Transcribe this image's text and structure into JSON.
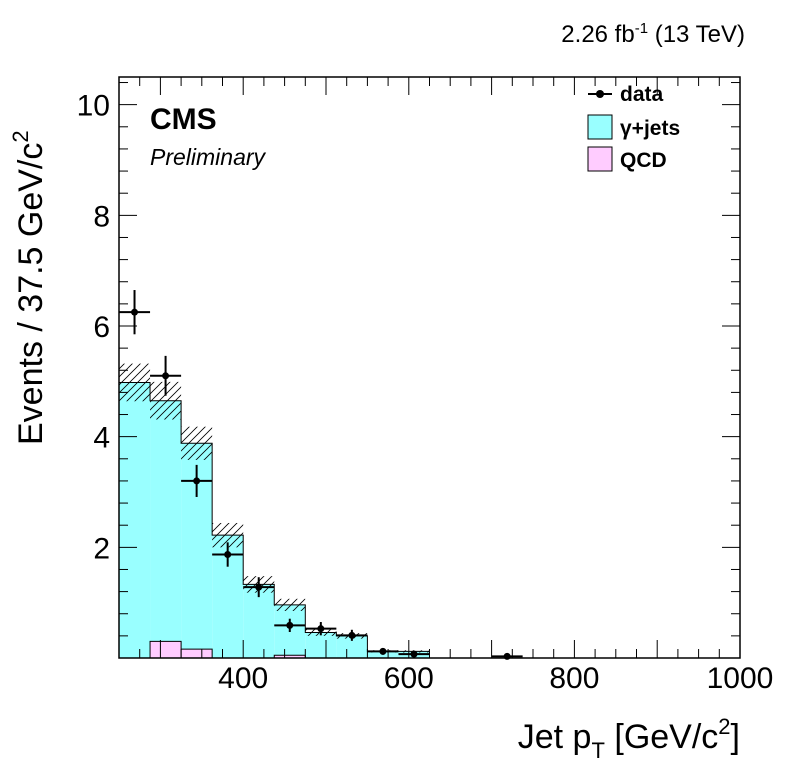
{
  "header": {
    "lumi": "2.26 fb",
    "lumi_exp": "-1",
    "energy": "(13 TeV)"
  },
  "labels": {
    "experiment": "CMS",
    "status": "Preliminary"
  },
  "colors": {
    "gamma_jets": "#99ffff",
    "qcd": "#ffccff",
    "data": "#000000",
    "uncertainty_hatch": "#000000"
  },
  "chart_data": {
    "type": "histogram",
    "xlabel_main": "Jet p",
    "xlabel_sub": "T",
    "xlabel_unit": " [GeV/c",
    "xlabel_unit_exp": "2",
    "xlabel_close": "]",
    "ylabel_main": "Events / 37.5 GeV/c",
    "ylabel_exp": "2",
    "xlim": [
      250,
      1000
    ],
    "ylim": [
      0,
      10.5
    ],
    "x_ticks": [
      400,
      600,
      800,
      1000
    ],
    "x_tick_labels": [
      "400",
      "600",
      "800",
      "1000"
    ],
    "y_ticks": [
      2,
      4,
      6,
      8,
      10
    ],
    "y_tick_labels": [
      "2",
      "4",
      "6",
      "8",
      "10"
    ],
    "bin_edges": [
      250,
      287.5,
      325,
      362.5,
      400,
      437.5,
      475,
      512.5,
      550,
      587.5,
      625,
      662.5,
      700,
      737.5,
      775,
      812.5,
      850,
      887.5,
      925,
      962.5,
      1000
    ],
    "stack": [
      {
        "name": "QCD",
        "values": [
          0.0,
          0.3,
          0.16,
          0.0,
          0.0,
          0.05,
          0.0,
          0.0,
          0.0,
          0.0,
          0.0,
          0.0,
          0.0,
          0.0,
          0.0,
          0.0,
          0.0,
          0.0,
          0.0,
          0.0
        ]
      },
      {
        "name": "γ+jets",
        "values": [
          4.98,
          4.35,
          3.72,
          2.22,
          1.33,
          0.91,
          0.46,
          0.4,
          0.12,
          0.12,
          0.0,
          0.0,
          0.0,
          0.0,
          0.0,
          0.0,
          0.0,
          0.0,
          0.0,
          0.0
        ]
      }
    ],
    "uncertainty": [
      0.34,
      0.34,
      0.3,
      0.22,
      0.15,
      0.11,
      0.06,
      0.05,
      0.02,
      0.02,
      0,
      0,
      0,
      0,
      0,
      0,
      0,
      0,
      0,
      0
    ],
    "data": {
      "name": "data",
      "x": [
        268.75,
        306.25,
        343.75,
        381.25,
        418.75,
        456.25,
        493.75,
        531.25,
        568.75,
        606.25,
        718.75
      ],
      "y": [
        6.25,
        5.1,
        3.2,
        1.87,
        1.28,
        0.59,
        0.53,
        0.41,
        0.12,
        0.07,
        0.03
      ],
      "yerr": [
        0.4,
        0.36,
        0.29,
        0.22,
        0.18,
        0.12,
        0.12,
        0.1,
        0.06,
        0.04,
        0.03
      ]
    },
    "legend": {
      "position": "top-right",
      "entries": [
        {
          "label": "data",
          "kind": "marker"
        },
        {
          "label": "γ+jets",
          "kind": "box",
          "color": "#99ffff"
        },
        {
          "label": "QCD",
          "kind": "box",
          "color": "#ffccff"
        }
      ]
    }
  }
}
